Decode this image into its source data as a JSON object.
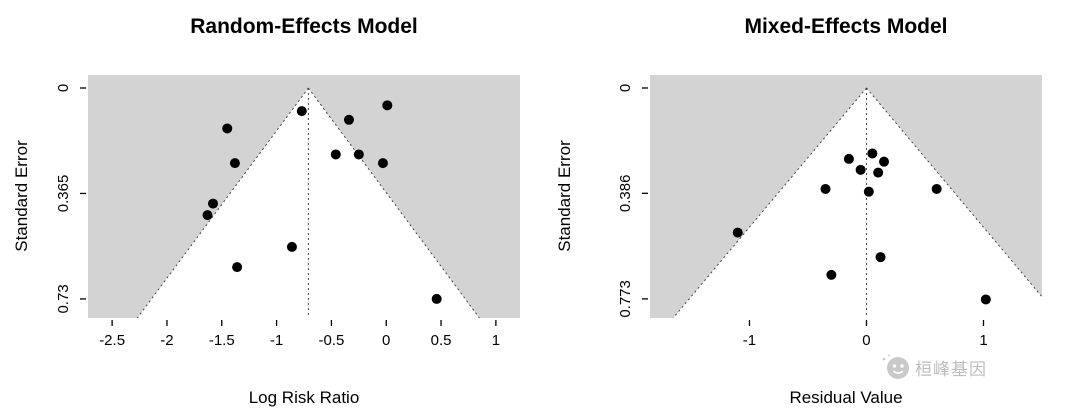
{
  "colors": {
    "plot_bg": "#d3d3d3",
    "funnel_fill": "#ffffff",
    "point": "#000000",
    "dotted": "#444444",
    "axis": "#000000",
    "watermark": "#bdbdbd"
  },
  "watermark": {
    "text": "桓峰基因"
  },
  "chart_data": [
    {
      "type": "scatter",
      "subtype": "funnel-plot",
      "title": "Random-Effects Model",
      "xlabel": "Log Risk Ratio",
      "ylabel": "Standard Error",
      "legend": "none",
      "grid": false,
      "xlim": [
        -2.72,
        1.22
      ],
      "se_lim": [
        -0.045,
        0.796
      ],
      "center": -0.71,
      "ci_slope": 1.96,
      "x_ticks": [
        {
          "v": -2.5,
          "label": "-2.5"
        },
        {
          "v": -2,
          "label": "-2"
        },
        {
          "v": -1.5,
          "label": "-1.5"
        },
        {
          "v": -1,
          "label": "-1"
        },
        {
          "v": -0.5,
          "label": "-0.5"
        },
        {
          "v": 0,
          "label": "0"
        },
        {
          "v": 0.5,
          "label": "0.5"
        },
        {
          "v": 1,
          "label": "1"
        }
      ],
      "y_ticks": [
        {
          "v": 0,
          "label": "0"
        },
        {
          "v": 0.365,
          "label": "0.365"
        },
        {
          "v": 0.73,
          "label": "0.73"
        }
      ],
      "points": [
        [
          -1.45,
          0.14
        ],
        [
          -1.38,
          0.26
        ],
        [
          -0.77,
          0.08
        ],
        [
          -0.34,
          0.11
        ],
        [
          0.01,
          0.06
        ],
        [
          -0.46,
          0.23
        ],
        [
          -0.25,
          0.23
        ],
        [
          -0.03,
          0.26
        ],
        [
          -1.58,
          0.4
        ],
        [
          -1.63,
          0.44
        ],
        [
          -1.36,
          0.62
        ],
        [
          -0.86,
          0.55
        ],
        [
          0.46,
          0.73
        ]
      ]
    },
    {
      "type": "scatter",
      "subtype": "funnel-plot",
      "title": "Mixed-Effects Model",
      "xlabel": "Residual Value",
      "ylabel": "Standard Error",
      "legend": "none",
      "grid": false,
      "xlim": [
        -1.85,
        1.5
      ],
      "se_lim": [
        -0.0476,
        0.843
      ],
      "center": 0,
      "ci_slope": 1.96,
      "x_ticks": [
        {
          "v": -1,
          "label": "-1"
        },
        {
          "v": 0,
          "label": "0"
        },
        {
          "v": 1,
          "label": "1"
        }
      ],
      "y_ticks": [
        {
          "v": 0,
          "label": "0"
        },
        {
          "v": 0.386,
          "label": "0.386"
        },
        {
          "v": 0.773,
          "label": "0.773"
        }
      ],
      "points": [
        [
          -0.15,
          0.26
        ],
        [
          0.05,
          0.24
        ],
        [
          0.15,
          0.27
        ],
        [
          -0.05,
          0.3
        ],
        [
          0.1,
          0.31
        ],
        [
          -0.35,
          0.37
        ],
        [
          0.02,
          0.38
        ],
        [
          0.6,
          0.37
        ],
        [
          -1.1,
          0.53
        ],
        [
          0.12,
          0.62
        ],
        [
          -0.3,
          0.685
        ],
        [
          1.02,
          0.775
        ]
      ]
    }
  ]
}
